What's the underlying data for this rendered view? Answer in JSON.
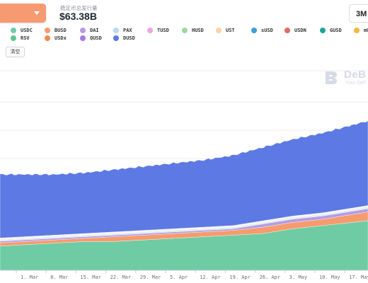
{
  "header": {
    "supply_label": "稳定币总发行量",
    "supply_value": "$63.38B",
    "range_label": "3M"
  },
  "legend_clear": "清空",
  "watermark": {
    "name": "DeB",
    "tagline": "Your DeF"
  },
  "chart_data": {
    "type": "area",
    "stacked": true,
    "x": [
      "1. Mar",
      "8. Mar",
      "15. Mar",
      "22. Mar",
      "29. Mar",
      "5. Apr",
      "12. Apr",
      "19. Apr",
      "26. Apr",
      "3. May",
      "10. May",
      "17. May"
    ],
    "y_axis_labels_visible": false,
    "legend_placement": "top",
    "series": [
      {
        "name": "USDC",
        "color": "#6ecba3",
        "values": [
          1.6,
          1.7,
          1.8,
          1.8,
          1.9,
          2.0,
          2.1,
          2.2,
          2.3,
          2.6,
          2.8,
          3.0
        ]
      },
      {
        "name": "BUSD",
        "color": "#f59b6e",
        "values": [
          0.2,
          0.2,
          0.2,
          0.3,
          0.3,
          0.3,
          0.3,
          0.3,
          0.4,
          0.4,
          0.4,
          0.5
        ]
      },
      {
        "name": "DAI",
        "color": "#b69be3",
        "values": [
          0.1,
          0.1,
          0.1,
          0.1,
          0.1,
          0.1,
          0.1,
          0.1,
          0.2,
          0.2,
          0.2,
          0.2
        ]
      },
      {
        "name": "PAX",
        "color": "#b9d9f3",
        "values": [
          0.05,
          0.05,
          0.05,
          0.05,
          0.05,
          0.05,
          0.05,
          0.05,
          0.05,
          0.05,
          0.05,
          0.05
        ]
      },
      {
        "name": "TUSD",
        "color": "#e9a6e0",
        "values": [
          0.02,
          0.02,
          0.02,
          0.02,
          0.02,
          0.02,
          0.02,
          0.02,
          0.02,
          0.02,
          0.02,
          0.02
        ]
      },
      {
        "name": "HUSD",
        "color": "#9ed9a0",
        "values": [
          0.03,
          0.03,
          0.03,
          0.03,
          0.03,
          0.03,
          0.03,
          0.03,
          0.03,
          0.03,
          0.03,
          0.03
        ]
      },
      {
        "name": "UST",
        "color": "#f9d3a6",
        "values": [
          0.03,
          0.03,
          0.03,
          0.03,
          0.03,
          0.03,
          0.03,
          0.03,
          0.03,
          0.03,
          0.03,
          0.03
        ]
      },
      {
        "name": "sUSD",
        "color": "#3f9fd6",
        "values": [
          0.01,
          0.01,
          0.01,
          0.01,
          0.01,
          0.01,
          0.01,
          0.01,
          0.01,
          0.01,
          0.01,
          0.01
        ]
      },
      {
        "name": "USDN",
        "color": "#e06a5f",
        "values": [
          0.01,
          0.01,
          0.01,
          0.01,
          0.01,
          0.01,
          0.01,
          0.01,
          0.01,
          0.01,
          0.01,
          0.01
        ]
      },
      {
        "name": "GUSD",
        "color": "#1fa596",
        "values": [
          0.01,
          0.01,
          0.01,
          0.01,
          0.01,
          0.01,
          0.01,
          0.01,
          0.01,
          0.01,
          0.01,
          0.01
        ]
      },
      {
        "name": "mU",
        "color": "#f4b63c",
        "values": [
          0.01,
          0.01,
          0.01,
          0.01,
          0.01,
          0.01,
          0.01,
          0.01,
          0.01,
          0.01,
          0.01,
          0.01
        ]
      },
      {
        "name": "RSV",
        "color": "#5fc48f",
        "values": [
          0.01,
          0.01,
          0.01,
          0.01,
          0.01,
          0.01,
          0.01,
          0.01,
          0.01,
          0.01,
          0.01,
          0.01
        ]
      },
      {
        "name": "USDx",
        "color": "#f38a52",
        "values": [
          0.01,
          0.01,
          0.01,
          0.01,
          0.01,
          0.01,
          0.01,
          0.01,
          0.01,
          0.01,
          0.01,
          0.01
        ]
      },
      {
        "name": "QUSD",
        "color": "#a77ae0",
        "values": [
          0.01,
          0.01,
          0.01,
          0.01,
          0.01,
          0.01,
          0.01,
          0.01,
          0.01,
          0.01,
          0.01,
          0.01
        ]
      },
      {
        "name": "DUSD",
        "color": "#5d79e3",
        "values": [
          3.9,
          3.8,
          3.8,
          3.9,
          4.0,
          4.1,
          4.2,
          4.4,
          4.6,
          4.8,
          5.0,
          5.2
        ]
      }
    ]
  }
}
